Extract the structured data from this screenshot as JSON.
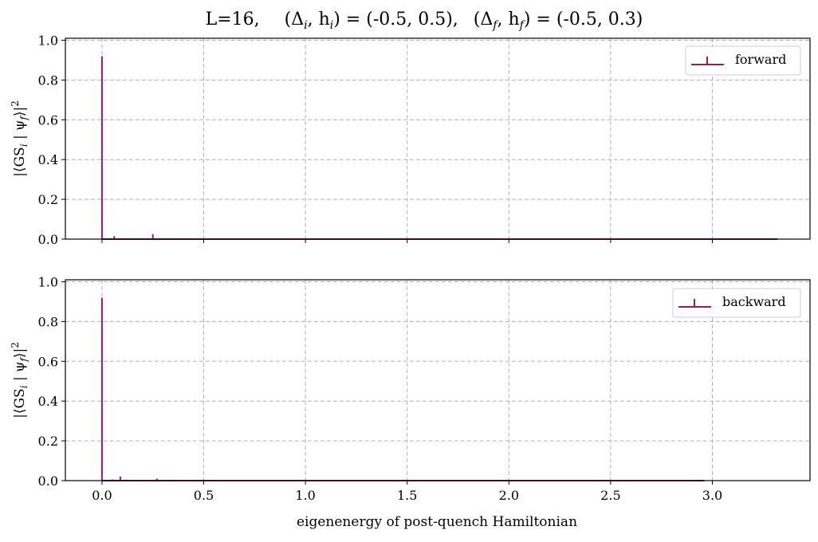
{
  "chart_data": {
    "type": "stem",
    "title": "L=16,     (Δ_i, h_i) = (-0.5, 0.5),   (Δ_f, h_f) = (-0.5, 0.3)",
    "title_parts": {
      "prefix": "L=16,",
      "init_open": "(Δ",
      "init_sub1": "i",
      "init_mid": ", h",
      "init_sub2": "i",
      "init_close": ") = (-0.5, 0.5),",
      "final_open": "(Δ",
      "final_sub1": "f",
      "final_mid": ", h",
      "final_sub2": "f",
      "final_close": ") = (-0.5, 0.3)"
    },
    "xlabel": "eigenenergy of post-quench Hamiltonian",
    "ylabel": "|⟨GS_i | ψ_f⟩|²",
    "ylabel_parts": {
      "a": "|⟨GS",
      "sub1": "i",
      "b": " | ψ",
      "sub2": "f",
      "c": "⟩|",
      "sup": "2"
    },
    "xlim": [
      -0.18,
      3.48
    ],
    "ylim": [
      0,
      1.0
    ],
    "xticks": [
      "0.0",
      "0.5",
      "1.0",
      "1.5",
      "2.0",
      "2.5",
      "3.0"
    ],
    "xtick_values": [
      0,
      0.5,
      1.0,
      1.5,
      2.0,
      2.5,
      3.0
    ],
    "yticks": [
      "0.0",
      "0.2",
      "0.4",
      "0.6",
      "0.8",
      "1.0"
    ],
    "ytick_values": [
      0,
      0.2,
      0.4,
      0.6,
      0.8,
      1.0
    ],
    "grid": true,
    "color": "#9b1b5a",
    "panels": [
      {
        "legend": "forward",
        "legend_position": "upper right",
        "baseline_end": 3.32,
        "points": [
          {
            "x": 0.0,
            "y": 0.92
          },
          {
            "x": 0.06,
            "y": 0.015
          },
          {
            "x": 0.25,
            "y": 0.025
          }
        ]
      },
      {
        "legend": "backward",
        "legend_position": "upper right",
        "baseline_end": 2.96,
        "points": [
          {
            "x": 0.0,
            "y": 0.92
          },
          {
            "x": 0.05,
            "y": 0.006
          },
          {
            "x": 0.09,
            "y": 0.02
          },
          {
            "x": 0.12,
            "y": 0.005
          },
          {
            "x": 0.27,
            "y": 0.01
          }
        ]
      }
    ]
  }
}
